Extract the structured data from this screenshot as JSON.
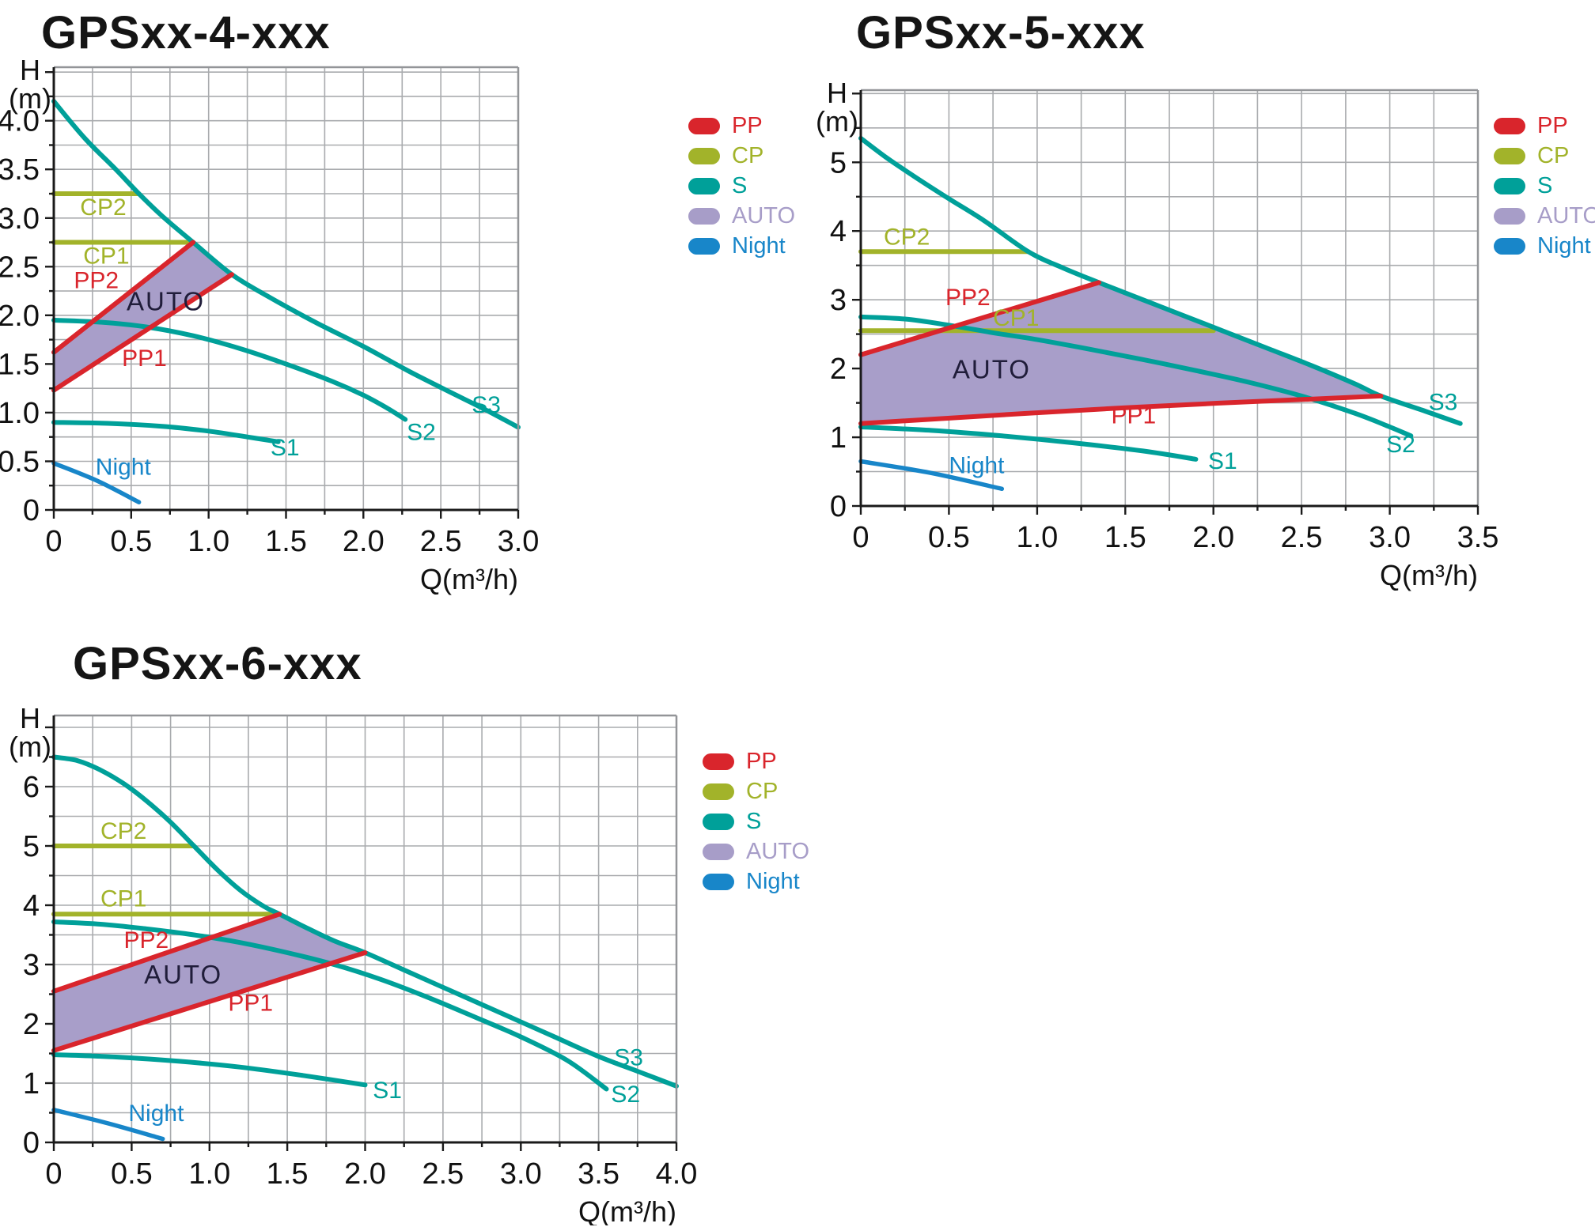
{
  "colors": {
    "pp": "#D9252C",
    "cp": "#A2B32A",
    "s": "#00A099",
    "auto": "#A79DC8",
    "auto_fill": "#A89EC9",
    "auto_text": "#201D3A",
    "night": "#1886C9",
    "grid": "#A9ABAE",
    "border": "#939598",
    "axis": "#1A1A1A",
    "tick_text": "#111111"
  },
  "legend": {
    "items": [
      {
        "id": "pp",
        "label": "PP",
        "color": "#D9252C"
      },
      {
        "id": "cp",
        "label": "CP",
        "color": "#A2B32A"
      },
      {
        "id": "s",
        "label": "S",
        "color": "#00A099"
      },
      {
        "id": "auto",
        "label": "AUTO",
        "color": "#A79DC8"
      },
      {
        "id": "night",
        "label": "Night",
        "color": "#1886C9"
      }
    ]
  },
  "chart_data": [
    {
      "id": "gpsxx-4-xxx",
      "type": "line",
      "title": "GPSxx-4-xxx",
      "xlabel": "Q(m³/h)",
      "ylabel_lines": [
        "H",
        "(m)"
      ],
      "xlim": [
        0,
        3.0
      ],
      "ylim": [
        0,
        4.55
      ],
      "x_tick_step": 0.5,
      "x_minor_step": 0.25,
      "y_tick_step": 0.5,
      "y_minor_step": 0.25,
      "x_tick_labels": [
        "0",
        "0.5",
        "1.0",
        "1.5",
        "2.0",
        "2.5",
        "3.0"
      ],
      "y_tick_labels": [
        "0",
        "0.5",
        "1.0",
        "1.5",
        "2.0",
        "2.5",
        "3.0",
        "3.5",
        "4.0"
      ],
      "auto_area": [
        [
          0,
          1.23
        ],
        [
          0,
          1.62
        ],
        [
          0.9,
          2.75
        ],
        [
          1.0,
          2.62
        ],
        [
          1.15,
          2.42
        ]
      ],
      "series": [
        {
          "name": "CP2",
          "group": "cp",
          "points": [
            [
              0,
              3.25
            ],
            [
              0.55,
              3.25
            ]
          ]
        },
        {
          "name": "CP1",
          "group": "cp",
          "points": [
            [
              0,
              2.75
            ],
            [
              0.9,
              2.75
            ]
          ]
        },
        {
          "name": "S3",
          "group": "s",
          "points": [
            [
              0,
              4.2
            ],
            [
              0.2,
              3.82
            ],
            [
              0.4,
              3.5
            ],
            [
              0.55,
              3.25
            ],
            [
              0.7,
              3.02
            ],
            [
              0.9,
              2.75
            ],
            [
              1.15,
              2.42
            ],
            [
              1.4,
              2.18
            ],
            [
              1.7,
              1.92
            ],
            [
              2.0,
              1.68
            ],
            [
              2.3,
              1.42
            ],
            [
              2.6,
              1.18
            ],
            [
              2.8,
              1.02
            ],
            [
              3.0,
              0.85
            ]
          ]
        },
        {
          "name": "S2",
          "group": "s",
          "points": [
            [
              0,
              1.95
            ],
            [
              0.3,
              1.93
            ],
            [
              0.6,
              1.88
            ],
            [
              0.9,
              1.79
            ],
            [
              1.2,
              1.66
            ],
            [
              1.5,
              1.5
            ],
            [
              1.8,
              1.32
            ],
            [
              2.0,
              1.18
            ],
            [
              2.15,
              1.05
            ],
            [
              2.27,
              0.93
            ]
          ]
        },
        {
          "name": "S1",
          "group": "s",
          "points": [
            [
              0,
              0.9
            ],
            [
              0.35,
              0.89
            ],
            [
              0.7,
              0.86
            ],
            [
              1.0,
              0.81
            ],
            [
              1.25,
              0.75
            ],
            [
              1.45,
              0.7
            ]
          ]
        },
        {
          "name": "PP2",
          "group": "pp",
          "points": [
            [
              0,
              1.62
            ],
            [
              0.9,
              2.75
            ]
          ]
        },
        {
          "name": "PP1",
          "group": "pp",
          "points": [
            [
              0,
              1.23
            ],
            [
              1.15,
              2.42
            ]
          ]
        },
        {
          "name": "Night",
          "group": "night",
          "points": [
            [
              0,
              0.48
            ],
            [
              0.28,
              0.3
            ],
            [
              0.55,
              0.08
            ]
          ]
        }
      ],
      "labels": [
        {
          "text": "CP2",
          "x": 0.17,
          "y": 3.03,
          "group": "cp"
        },
        {
          "text": "CP1",
          "x": 0.19,
          "y": 2.53,
          "group": "cp"
        },
        {
          "text": "PP2",
          "x": 0.13,
          "y": 2.28,
          "group": "pp"
        },
        {
          "text": "AUTO",
          "x": 0.47,
          "y": 2.05,
          "group": "auto_text"
        },
        {
          "text": "PP1",
          "x": 0.44,
          "y": 1.48,
          "group": "pp"
        },
        {
          "text": "S3",
          "x": 2.7,
          "y": 1.0,
          "group": "s"
        },
        {
          "text": "S2",
          "x": 2.28,
          "y": 0.72,
          "group": "s"
        },
        {
          "text": "S1",
          "x": 1.4,
          "y": 0.56,
          "group": "s"
        },
        {
          "text": "Night",
          "x": 0.27,
          "y": 0.36,
          "group": "night"
        }
      ]
    },
    {
      "id": "gpsxx-5-xxx",
      "type": "line",
      "title": "GPSxx-5-xxx",
      "xlabel": "Q(m³/h)",
      "ylabel_lines": [
        "H",
        "(m)"
      ],
      "xlim": [
        0,
        3.5
      ],
      "ylim": [
        0,
        6.05
      ],
      "x_tick_step": 0.5,
      "x_minor_step": 0.25,
      "y_tick_step": 1,
      "y_minor_step": 0.5,
      "x_tick_labels": [
        "0",
        "0.5",
        "1.0",
        "1.5",
        "2.0",
        "2.5",
        "3.0",
        "3.5"
      ],
      "y_tick_labels": [
        "0",
        "1",
        "2",
        "3",
        "4",
        "5"
      ],
      "auto_area": [
        [
          0,
          1.2
        ],
        [
          0,
          2.2
        ],
        [
          1.35,
          3.25
        ],
        [
          1.6,
          3.0
        ],
        [
          1.85,
          2.75
        ],
        [
          2.05,
          2.55
        ],
        [
          2.3,
          2.3
        ],
        [
          2.55,
          2.05
        ],
        [
          2.8,
          1.78
        ],
        [
          2.95,
          1.6
        ],
        [
          1.5,
          1.43
        ]
      ],
      "series": [
        {
          "name": "CP2",
          "group": "cp",
          "points": [
            [
              0,
              3.7
            ],
            [
              0.95,
              3.7
            ]
          ]
        },
        {
          "name": "CP1",
          "group": "cp",
          "points": [
            [
              0,
              2.55
            ],
            [
              2.0,
              2.55
            ]
          ]
        },
        {
          "name": "S3",
          "group": "s",
          "points": [
            [
              0,
              5.35
            ],
            [
              0.15,
              5.06
            ],
            [
              0.3,
              4.8
            ],
            [
              0.5,
              4.47
            ],
            [
              0.7,
              4.15
            ],
            [
              0.95,
              3.7
            ],
            [
              1.15,
              3.46
            ],
            [
              1.35,
              3.25
            ],
            [
              1.6,
              3.0
            ],
            [
              1.85,
              2.75
            ],
            [
              2.05,
              2.55
            ],
            [
              2.3,
              2.3
            ],
            [
              2.55,
              2.05
            ],
            [
              2.8,
              1.78
            ],
            [
              2.95,
              1.6
            ],
            [
              3.2,
              1.38
            ],
            [
              3.4,
              1.2
            ]
          ]
        },
        {
          "name": "S2",
          "group": "s",
          "points": [
            [
              0,
              2.75
            ],
            [
              0.25,
              2.72
            ],
            [
              0.5,
              2.63
            ],
            [
              0.75,
              2.52
            ],
            [
              1.0,
              2.42
            ],
            [
              1.3,
              2.28
            ],
            [
              1.6,
              2.13
            ],
            [
              1.9,
              1.97
            ],
            [
              2.2,
              1.8
            ],
            [
              2.5,
              1.6
            ],
            [
              2.8,
              1.35
            ],
            [
              3.0,
              1.15
            ],
            [
              3.12,
              1.02
            ]
          ]
        },
        {
          "name": "S1",
          "group": "s",
          "points": [
            [
              0,
              1.15
            ],
            [
              0.4,
              1.1
            ],
            [
              0.8,
              1.02
            ],
            [
              1.2,
              0.92
            ],
            [
              1.6,
              0.8
            ],
            [
              1.9,
              0.68
            ]
          ]
        },
        {
          "name": "PP2",
          "group": "pp",
          "points": [
            [
              0,
              2.2
            ],
            [
              1.35,
              3.25
            ]
          ]
        },
        {
          "name": "PP1",
          "group": "pp",
          "points": [
            [
              0,
              1.2
            ],
            [
              1.5,
              1.43
            ],
            [
              2.95,
              1.6
            ]
          ]
        },
        {
          "name": "Night",
          "group": "night",
          "points": [
            [
              0,
              0.65
            ],
            [
              0.4,
              0.48
            ],
            [
              0.8,
              0.25
            ]
          ]
        }
      ],
      "labels": [
        {
          "text": "CP2",
          "x": 0.13,
          "y": 3.8,
          "group": "cp"
        },
        {
          "text": "PP2",
          "x": 0.48,
          "y": 2.92,
          "group": "pp"
        },
        {
          "text": "CP1",
          "x": 0.75,
          "y": 2.62,
          "group": "cp"
        },
        {
          "text": "AUTO",
          "x": 0.52,
          "y": 1.86,
          "group": "auto_text"
        },
        {
          "text": "PP1",
          "x": 1.42,
          "y": 1.2,
          "group": "pp"
        },
        {
          "text": "S1",
          "x": 1.97,
          "y": 0.54,
          "group": "s"
        },
        {
          "text": "Night",
          "x": 0.5,
          "y": 0.48,
          "group": "night"
        },
        {
          "text": "S2",
          "x": 2.98,
          "y": 0.78,
          "group": "s"
        },
        {
          "text": "S3",
          "x": 3.22,
          "y": 1.4,
          "group": "s"
        }
      ]
    },
    {
      "id": "gpsxx-6-xxx",
      "type": "line",
      "title": "GPSxx-6-xxx",
      "xlabel": "Q(m³/h)",
      "ylabel_lines": [
        "H",
        "(m)"
      ],
      "xlim": [
        0,
        4.0
      ],
      "ylim": [
        0,
        7.2
      ],
      "x_tick_step": 0.5,
      "x_minor_step": 0.25,
      "y_tick_step": 1,
      "y_minor_step": 0.5,
      "x_tick_labels": [
        "0",
        "0.5",
        "1.0",
        "1.5",
        "2.0",
        "2.5",
        "3.0",
        "3.5",
        "4.0"
      ],
      "y_tick_labels": [
        "0",
        "1",
        "2",
        "3",
        "4",
        "5",
        "6"
      ],
      "auto_area": [
        [
          0,
          1.55
        ],
        [
          0,
          2.55
        ],
        [
          1.45,
          3.85
        ],
        [
          1.6,
          3.65
        ],
        [
          1.8,
          3.4
        ],
        [
          2.0,
          3.2
        ]
      ],
      "series": [
        {
          "name": "CP2",
          "group": "cp",
          "points": [
            [
              0,
              5.0
            ],
            [
              0.9,
              5.0
            ]
          ]
        },
        {
          "name": "CP1",
          "group": "cp",
          "points": [
            [
              0,
              3.85
            ],
            [
              1.45,
              3.85
            ]
          ]
        },
        {
          "name": "S3",
          "group": "s",
          "points": [
            [
              0,
              6.5
            ],
            [
              0.15,
              6.44
            ],
            [
              0.3,
              6.28
            ],
            [
              0.45,
              6.05
            ],
            [
              0.6,
              5.75
            ],
            [
              0.75,
              5.4
            ],
            [
              0.9,
              5.0
            ],
            [
              1.05,
              4.6
            ],
            [
              1.2,
              4.25
            ],
            [
              1.35,
              3.98
            ],
            [
              1.45,
              3.85
            ],
            [
              1.6,
              3.65
            ],
            [
              1.8,
              3.4
            ],
            [
              2.0,
              3.2
            ],
            [
              2.3,
              2.85
            ],
            [
              2.6,
              2.5
            ],
            [
              2.9,
              2.15
            ],
            [
              3.2,
              1.8
            ],
            [
              3.5,
              1.45
            ],
            [
              3.75,
              1.2
            ],
            [
              4.0,
              0.95
            ]
          ]
        },
        {
          "name": "S2",
          "group": "s",
          "points": [
            [
              0,
              3.72
            ],
            [
              0.3,
              3.68
            ],
            [
              0.6,
              3.6
            ],
            [
              0.9,
              3.5
            ],
            [
              1.2,
              3.37
            ],
            [
              1.5,
              3.2
            ],
            [
              1.8,
              3.0
            ],
            [
              2.1,
              2.75
            ],
            [
              2.4,
              2.45
            ],
            [
              2.7,
              2.12
            ],
            [
              3.0,
              1.78
            ],
            [
              3.3,
              1.38
            ],
            [
              3.55,
              0.9
            ]
          ]
        },
        {
          "name": "S1",
          "group": "s",
          "points": [
            [
              0,
              1.48
            ],
            [
              0.4,
              1.44
            ],
            [
              0.8,
              1.37
            ],
            [
              1.2,
              1.27
            ],
            [
              1.6,
              1.13
            ],
            [
              2.0,
              0.97
            ]
          ]
        },
        {
          "name": "PP2",
          "group": "pp",
          "points": [
            [
              0,
              2.55
            ],
            [
              1.45,
              3.85
            ]
          ]
        },
        {
          "name": "PP1",
          "group": "pp",
          "points": [
            [
              0,
              1.55
            ],
            [
              2.0,
              3.2
            ]
          ]
        },
        {
          "name": "Night",
          "group": "night",
          "points": [
            [
              0,
              0.55
            ],
            [
              0.35,
              0.32
            ],
            [
              0.7,
              0.06
            ]
          ]
        }
      ],
      "labels": [
        {
          "text": "CP2",
          "x": 0.3,
          "y": 5.12,
          "group": "cp"
        },
        {
          "text": "CP1",
          "x": 0.3,
          "y": 3.98,
          "group": "cp"
        },
        {
          "text": "PP2",
          "x": 0.45,
          "y": 3.28,
          "group": "pp"
        },
        {
          "text": "AUTO",
          "x": 0.58,
          "y": 2.68,
          "group": "auto_text"
        },
        {
          "text": "PP1",
          "x": 1.12,
          "y": 2.22,
          "group": "pp"
        },
        {
          "text": "S1",
          "x": 2.05,
          "y": 0.75,
          "group": "s"
        },
        {
          "text": "Night",
          "x": 0.48,
          "y": 0.36,
          "group": "night"
        },
        {
          "text": "S2",
          "x": 3.58,
          "y": 0.68,
          "group": "s"
        },
        {
          "text": "S3",
          "x": 3.6,
          "y": 1.3,
          "group": "s"
        }
      ]
    }
  ]
}
